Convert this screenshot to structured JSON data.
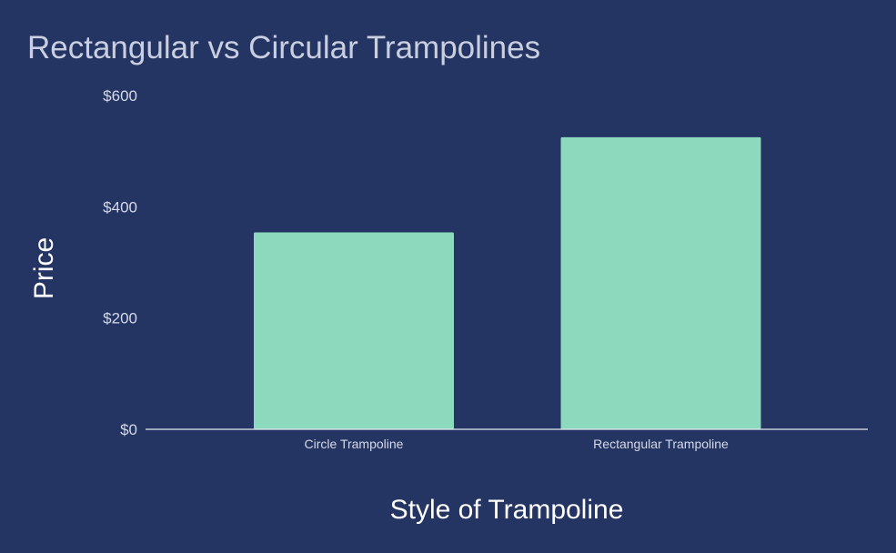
{
  "chart_data": {
    "type": "bar",
    "title": "Rectangular vs Circular Trampolines",
    "xlabel": "Style of Trampoline",
    "ylabel": "Price",
    "categories": [
      "Circle Trampoline",
      "Rectangular Trampoline"
    ],
    "values": [
      354,
      525
    ],
    "ylim": [
      0,
      600
    ],
    "yticks": [
      {
        "value": 0,
        "label": "$0"
      },
      {
        "value": 200,
        "label": "$200"
      },
      {
        "value": 400,
        "label": "$400"
      },
      {
        "value": 600,
        "label": "$600"
      }
    ],
    "grid": false,
    "legend": "none"
  },
  "colors": {
    "background": "#243463",
    "bar": "#8dd9bd",
    "baseline": "#e6e9f2"
  }
}
